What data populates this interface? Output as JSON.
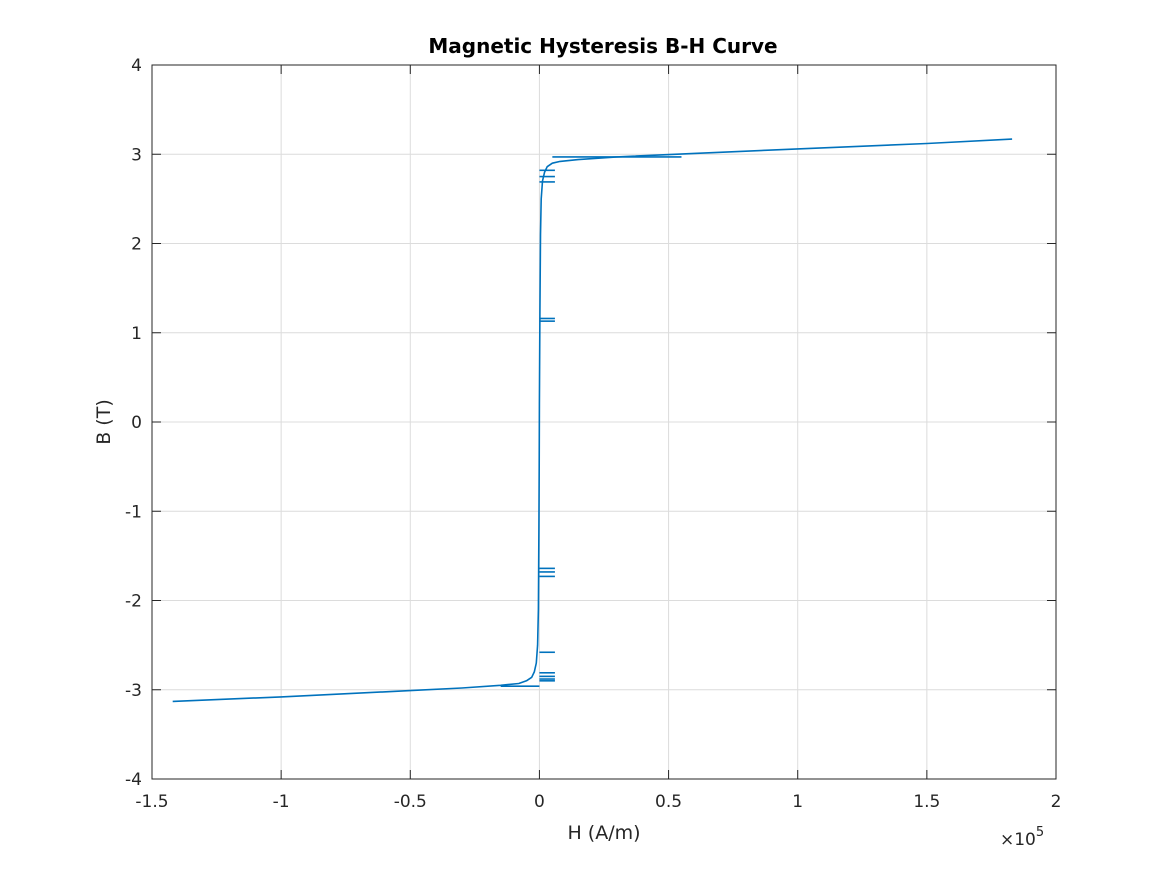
{
  "chart_data": {
    "type": "line",
    "title": "Magnetic Hysteresis B-H Curve",
    "xlabel": "H (A/m)",
    "ylabel": "B (T)",
    "x_multiplier": "×10",
    "x_multiplier_exponent": "5",
    "xlim": [
      -1.5,
      2
    ],
    "ylim": [
      -4,
      4
    ],
    "xticks": [
      -1.5,
      -1,
      -0.5,
      0,
      0.5,
      1,
      1.5,
      2
    ],
    "xtick_labels": [
      "-1.5",
      "-1",
      "-0.5",
      "0",
      "0.5",
      "1",
      "1.5",
      "2"
    ],
    "yticks": [
      -4,
      -3,
      -2,
      -1,
      0,
      1,
      2,
      3,
      4
    ],
    "ytick_labels": [
      "-4",
      "-3",
      "-2",
      "-1",
      "0",
      "1",
      "2",
      "3",
      "4"
    ],
    "grid": true,
    "legend": "none",
    "color": "#0072bd",
    "series": [
      {
        "x": [
          -1.42,
          -1.0,
          -0.5,
          -0.3,
          -0.15,
          -0.08,
          -0.05,
          -0.03,
          -0.02,
          -0.012,
          -0.007,
          -0.004,
          -0.002,
          -0.001,
          0.0,
          0.002,
          0.004,
          0.007,
          0.012,
          0.02,
          0.03,
          0.05,
          0.08,
          0.15,
          0.3,
          0.6,
          1.0,
          1.5,
          1.83
        ],
        "y": [
          -3.13,
          -3.08,
          -3.01,
          -2.98,
          -2.95,
          -2.93,
          -2.9,
          -2.86,
          -2.8,
          -2.7,
          -2.5,
          -2.1,
          -1.2,
          -0.5,
          0.2,
          1.2,
          2.1,
          2.5,
          2.7,
          2.8,
          2.86,
          2.9,
          2.92,
          2.94,
          2.97,
          3.01,
          3.06,
          3.12,
          3.17
        ]
      }
    ],
    "artifacts": [
      {
        "x0": 0.0,
        "x1": 0.06,
        "y": 1.13
      },
      {
        "x0": 0.0,
        "x1": 0.06,
        "y": 1.16
      },
      {
        "x0": 0.0,
        "x1": 0.06,
        "y": -1.64
      },
      {
        "x0": 0.0,
        "x1": 0.06,
        "y": -1.68
      },
      {
        "x0": 0.0,
        "x1": 0.06,
        "y": -1.73
      },
      {
        "x0": 0.0,
        "x1": 0.06,
        "y": -2.58
      },
      {
        "x0": 0.0,
        "x1": 0.06,
        "y": -2.81
      },
      {
        "x0": 0.0,
        "x1": 0.06,
        "y": -2.85
      },
      {
        "x0": 0.0,
        "x1": 0.06,
        "y": -2.88
      },
      {
        "x0": 0.0,
        "x1": 0.06,
        "y": -2.9
      },
      {
        "x0": 0.0,
        "x1": 0.06,
        "y": 2.82
      },
      {
        "x0": 0.0,
        "x1": 0.06,
        "y": 2.75
      },
      {
        "x0": 0.0,
        "x1": 0.06,
        "y": 2.69
      },
      {
        "x0": -0.15,
        "x1": 0.0,
        "y": -2.96
      },
      {
        "x0": 0.05,
        "x1": 0.55,
        "y": 2.97
      }
    ]
  }
}
